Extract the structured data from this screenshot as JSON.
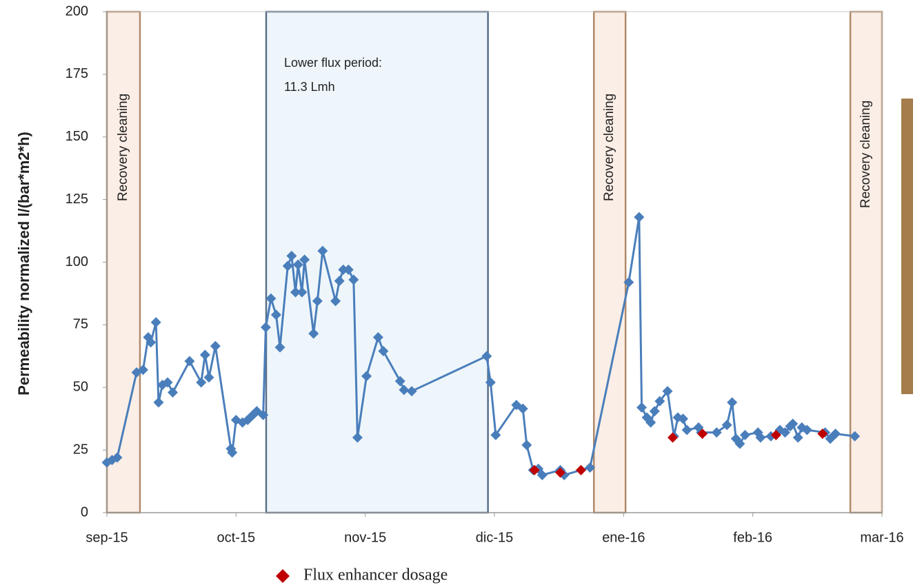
{
  "chart_data": {
    "type": "line",
    "ylabel": "Permeability normalized l/(bar*m2*h)",
    "xlim": [
      0,
      6
    ],
    "ylim": [
      0,
      200
    ],
    "xticks": [
      {
        "value": 0,
        "label": "sep-15"
      },
      {
        "value": 1,
        "label": "oct-15"
      },
      {
        "value": 2,
        "label": "nov-15"
      },
      {
        "value": 3,
        "label": "dic-15"
      },
      {
        "value": 4,
        "label": "ene-16"
      },
      {
        "value": 5,
        "label": "feb-16"
      },
      {
        "value": 6,
        "label": "mar-16"
      }
    ],
    "yticks": [
      0,
      25,
      50,
      75,
      100,
      125,
      150,
      175,
      200
    ],
    "grid": false,
    "legend": "bottom",
    "bands": [
      {
        "x0": 0,
        "x1": 0.256,
        "label": [
          "Recovery cleaning"
        ],
        "color": "#fbeee6",
        "edge": "#b08a6a"
      },
      {
        "x0": 1.233,
        "x1": 2.95,
        "label": [
          "Lower flux period:",
          "11.3 Lmh"
        ],
        "color": "#eef6fb",
        "edge": "#5a6f88"
      },
      {
        "x0": 3.77,
        "x1": 4.015,
        "label": [
          "Recovery cleaning"
        ],
        "color": "#fbeee6",
        "edge": "#b08a6a"
      },
      {
        "x0": 5.755,
        "x1": 6.0,
        "label": [
          "Recovery cleaning"
        ],
        "color": "#fbeee6",
        "edge": "#b08a6a"
      }
    ],
    "series": [
      {
        "color": "#4a7ebb",
        "line": true,
        "x": [
          0,
          0.04,
          0.08,
          0.23,
          0.28,
          0.32,
          0.34,
          0.38,
          0.4,
          0.43,
          0.47,
          0.51,
          0.64,
          0.73,
          0.76,
          0.79,
          0.84,
          0.96,
          0.97,
          1.0,
          1.05,
          1.09,
          1.13,
          1.16,
          1.21,
          1.23,
          1.27,
          1.31,
          1.34,
          1.4,
          1.43,
          1.46,
          1.48,
          1.51,
          1.53,
          1.6,
          1.63,
          1.67,
          1.77,
          1.8,
          1.83,
          1.87,
          1.91,
          1.94,
          2.01,
          2.1,
          2.14,
          2.27,
          2.3,
          2.36,
          2.94,
          2.97,
          3.01,
          3.17,
          3.22,
          3.25,
          3.3,
          3.34,
          3.37,
          3.51,
          3.54,
          3.67,
          3.74,
          4.04,
          4.12,
          4.14,
          4.18,
          4.21,
          4.24,
          4.28,
          4.34,
          4.39,
          4.42,
          4.46,
          4.49,
          4.58,
          4.6,
          4.72,
          4.8,
          4.84,
          4.87,
          4.9,
          4.94,
          5.04,
          5.06,
          5.14,
          5.21,
          5.25,
          5.29,
          5.31,
          5.35,
          5.38,
          5.42,
          5.56,
          5.6,
          5.64,
          5.79
        ],
        "values": [
          20,
          21,
          22,
          56,
          57,
          70,
          68,
          76,
          44,
          51,
          52,
          48,
          60.5,
          52,
          63,
          54,
          66.5,
          25.5,
          24,
          37,
          36,
          37,
          39,
          40.5,
          39,
          74,
          85.5,
          79,
          66,
          98.5,
          102.5,
          88,
          99,
          88,
          101,
          71.5,
          84.5,
          104.5,
          84.5,
          92.5,
          97,
          97,
          93,
          30,
          54.5,
          70,
          64.5,
          52.5,
          49,
          48.5,
          62.5,
          52,
          31,
          43,
          41.5,
          27,
          17,
          17.5,
          15,
          17,
          15,
          17,
          18,
          92,
          118,
          42,
          38,
          36,
          40.5,
          44.5,
          48.5,
          30.5,
          38,
          37.5,
          33,
          34,
          32,
          32,
          35,
          44,
          29.5,
          27.5,
          31,
          32,
          30,
          30.5,
          33,
          32,
          34.5,
          35.5,
          30,
          34,
          33,
          32,
          29.5,
          31.5,
          30.5
        ]
      },
      {
        "name": "Flux enhancer dosage",
        "color": "#c00000",
        "line": false,
        "x": [
          3.31,
          3.51,
          3.67,
          4.38,
          4.61,
          5.18,
          5.54
        ],
        "values": [
          17,
          16,
          17,
          30,
          31.5,
          31,
          31.5
        ]
      }
    ]
  }
}
